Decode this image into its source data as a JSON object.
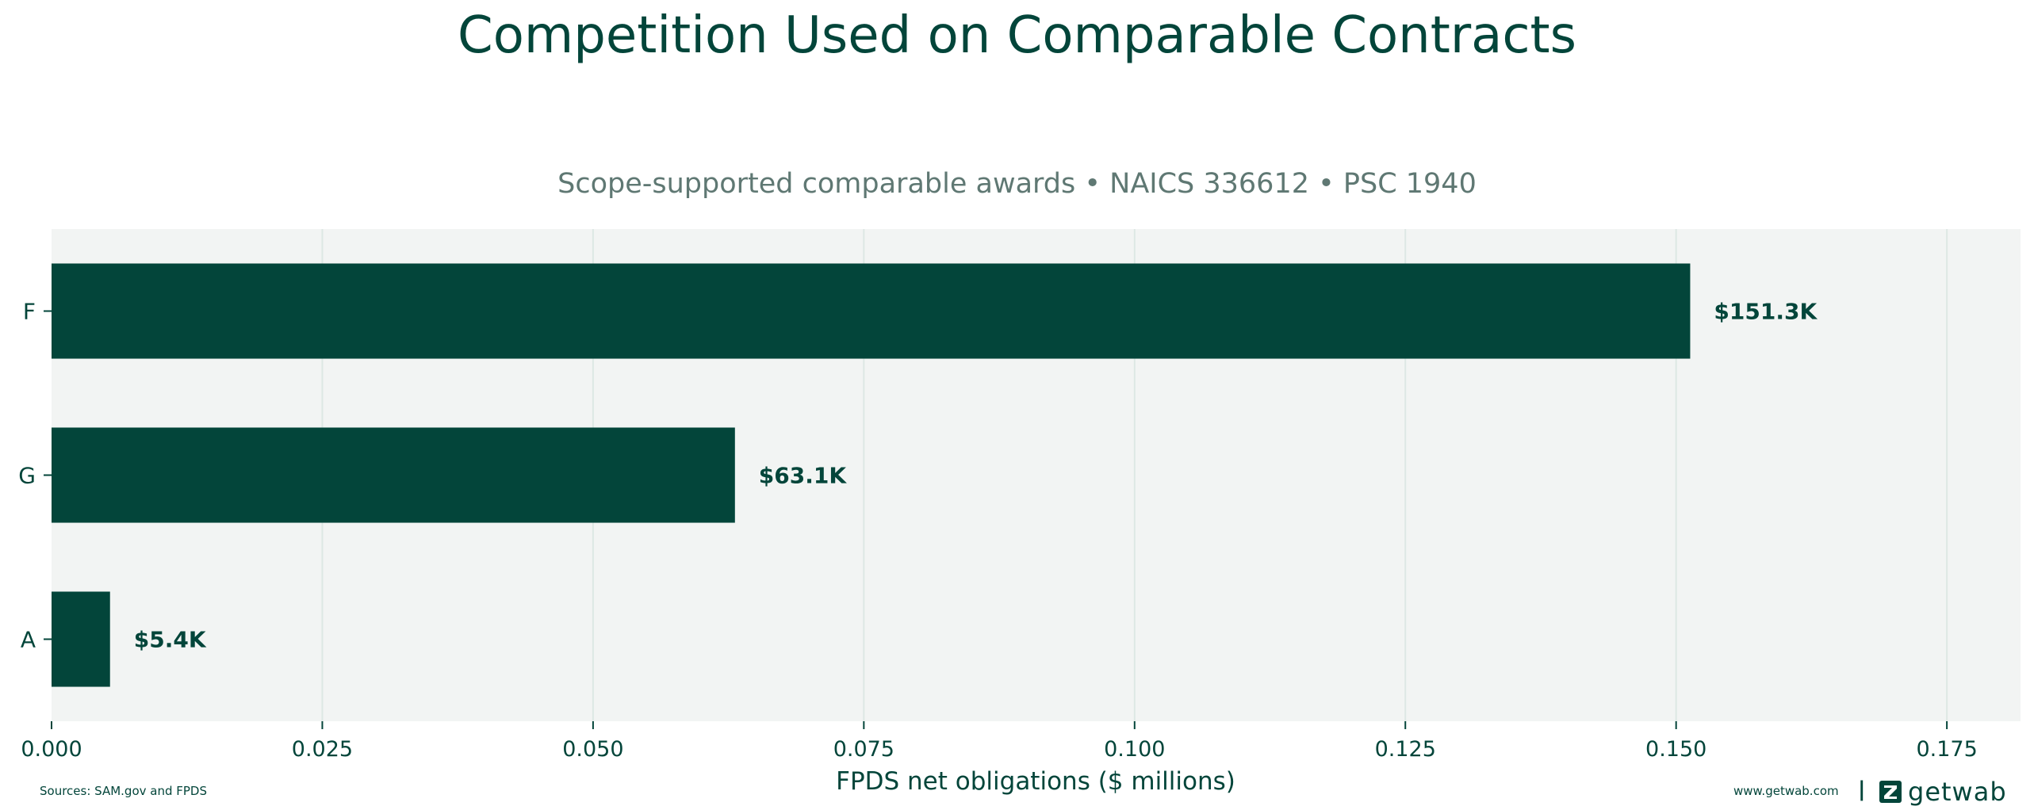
{
  "title": "Competition Used on Comparable Contracts",
  "subtitle": "Scope-supported comparable awards • NAICS 336612 • PSC 1940",
  "footer": {
    "source": "Sources: SAM.gov and FPDS",
    "site": "www.getwab.com",
    "divider": "|",
    "logo_text": "getwab",
    "logo_icon": "getwab-logo-icon"
  },
  "colors": {
    "bar": "#03453a",
    "plot_background": "#f2f4f3",
    "grid": "#dde8e4",
    "text": "#03453a",
    "subtitle": "#5f7873"
  },
  "chart_data": {
    "type": "bar",
    "orientation": "horizontal",
    "title": "Competition Used on Comparable Contracts",
    "subtitle": "Scope-supported comparable awards • NAICS 336612 • PSC 1940",
    "categories": [
      "F",
      "G",
      "A"
    ],
    "values": [
      0.1513,
      0.0631,
      0.0054
    ],
    "data_labels": [
      "$151.3K",
      "$63.1K",
      "$5.4K"
    ],
    "xlabel": "FPDS net obligations ($ millions)",
    "ylabel": "",
    "xlim": [
      0,
      0.1818
    ],
    "xticks": [
      0.0,
      0.025,
      0.05,
      0.075,
      0.1,
      0.125,
      0.15,
      0.175
    ],
    "xtick_labels": [
      "0.000",
      "0.025",
      "0.050",
      "0.075",
      "0.100",
      "0.125",
      "0.150",
      "0.175"
    ],
    "grid": "vertical"
  }
}
